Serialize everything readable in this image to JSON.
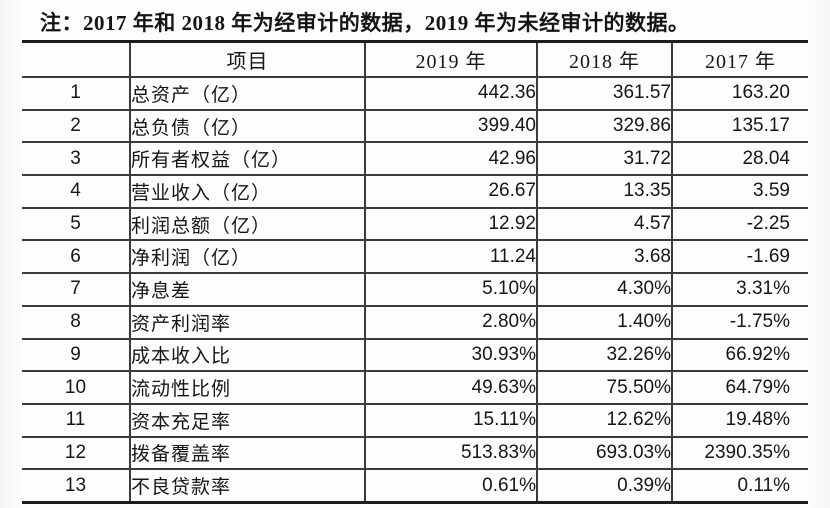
{
  "note": "注：2017 年和 2018 年为经审计的数据，2019 年为未经审计的数据。",
  "table": {
    "headers": {
      "index": "",
      "item": "项目",
      "y2019": "2019 年",
      "y2018": "2018 年",
      "y2017": "2017 年"
    },
    "rows": [
      {
        "index": "1",
        "item": "总资产（亿）",
        "y2019": "442.36",
        "y2018": "361.57",
        "y2017": "163.20"
      },
      {
        "index": "2",
        "item": "总负债（亿）",
        "y2019": "399.40",
        "y2018": "329.86",
        "y2017": "135.17"
      },
      {
        "index": "3",
        "item": "所有者权益（亿）",
        "y2019": "42.96",
        "y2018": "31.72",
        "y2017": "28.04"
      },
      {
        "index": "4",
        "item": "营业收入（亿）",
        "y2019": "26.67",
        "y2018": "13.35",
        "y2017": "3.59"
      },
      {
        "index": "5",
        "item": "利润总额（亿）",
        "y2019": "12.92",
        "y2018": "4.57",
        "y2017": "-2.25"
      },
      {
        "index": "6",
        "item": "净利润（亿）",
        "y2019": "11.24",
        "y2018": "3.68",
        "y2017": "-1.69"
      },
      {
        "index": "7",
        "item": "净息差",
        "y2019": "5.10%",
        "y2018": "4.30%",
        "y2017": "3.31%"
      },
      {
        "index": "8",
        "item": "资产利润率",
        "y2019": "2.80%",
        "y2018": "1.40%",
        "y2017": "-1.75%"
      },
      {
        "index": "9",
        "item": "成本收入比",
        "y2019": "30.93%",
        "y2018": "32.26%",
        "y2017": "66.92%"
      },
      {
        "index": "10",
        "item": "流动性比例",
        "y2019": "49.63%",
        "y2018": "75.50%",
        "y2017": "64.79%"
      },
      {
        "index": "11",
        "item": "资本充足率",
        "y2019": "15.11%",
        "y2018": "12.62%",
        "y2017": "19.48%"
      },
      {
        "index": "12",
        "item": "拨备覆盖率",
        "y2019": "513.83%",
        "y2018": "693.03%",
        "y2017": "2390.35%"
      },
      {
        "index": "13",
        "item": "不良贷款率",
        "y2019": "0.61%",
        "y2018": "0.39%",
        "y2017": "0.11%"
      }
    ]
  }
}
